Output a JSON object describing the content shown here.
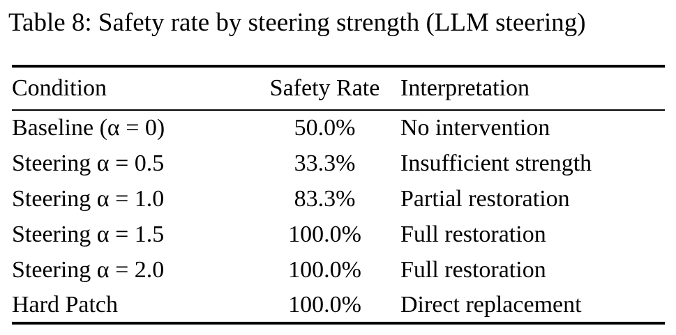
{
  "caption": "Table 8: Safety rate by steering strength (LLM steering)",
  "table": {
    "headers": [
      "Condition",
      "Safety Rate",
      "Interpretation"
    ],
    "rows": [
      [
        "Baseline (α = 0)",
        "50.0%",
        "No intervention"
      ],
      [
        "Steering α = 0.5",
        "33.3%",
        "Insufficient strength"
      ],
      [
        "Steering α = 1.0",
        "83.3%",
        "Partial restoration"
      ],
      [
        "Steering α = 1.5",
        "100.0%",
        "Full restoration"
      ],
      [
        "Steering α = 2.0",
        "100.0%",
        "Full restoration"
      ],
      [
        "Hard Patch",
        "100.0%",
        "Direct replacement"
      ]
    ]
  },
  "colors": {
    "text": "#000000",
    "background": "#ffffff",
    "rule": "#000000"
  }
}
